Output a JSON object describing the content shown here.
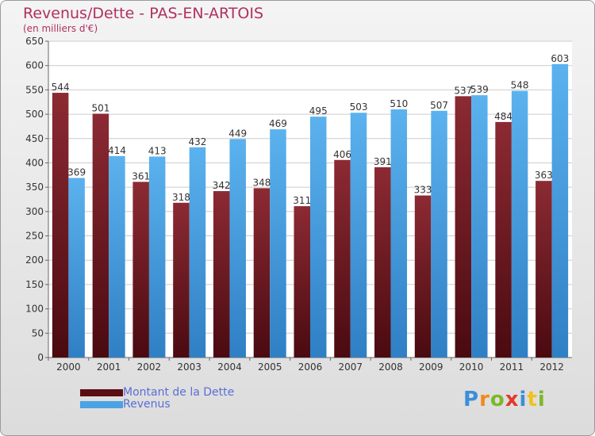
{
  "header": {
    "title": "Revenus/Dette - PAS-EN-ARTOIS",
    "subtitle": "(en milliers d'€)"
  },
  "legend": {
    "debt_label": "Montant de la Dette",
    "revenue_label": "Revenus"
  },
  "logo": {
    "text": "Proxiti"
  },
  "colors": {
    "debt": "#7a1e26",
    "revenue": "#4ba3e3",
    "subtitle": "#b03060",
    "legend_text": "#5a6ed8"
  },
  "chart_data": {
    "type": "bar",
    "categories": [
      "2000",
      "2001",
      "2002",
      "2003",
      "2004",
      "2005",
      "2006",
      "2007",
      "2008",
      "2009",
      "2010",
      "2011",
      "2012"
    ],
    "series": [
      {
        "name": "Montant de la Dette",
        "values": [
          544,
          501,
          361,
          318,
          342,
          348,
          311,
          406,
          391,
          333,
          537,
          484,
          363
        ]
      },
      {
        "name": "Revenus",
        "values": [
          369,
          414,
          413,
          432,
          449,
          469,
          495,
          503,
          510,
          507,
          539,
          548,
          603
        ]
      }
    ],
    "title": "Revenus/Dette - PAS-EN-ARTOIS",
    "ylabel": "(en milliers d'€)",
    "ylim": [
      0,
      650
    ],
    "yticks": [
      0,
      50,
      100,
      150,
      200,
      250,
      300,
      350,
      400,
      450,
      500,
      550,
      600,
      650
    ],
    "grid": true,
    "legend_position": "bottom-left"
  }
}
